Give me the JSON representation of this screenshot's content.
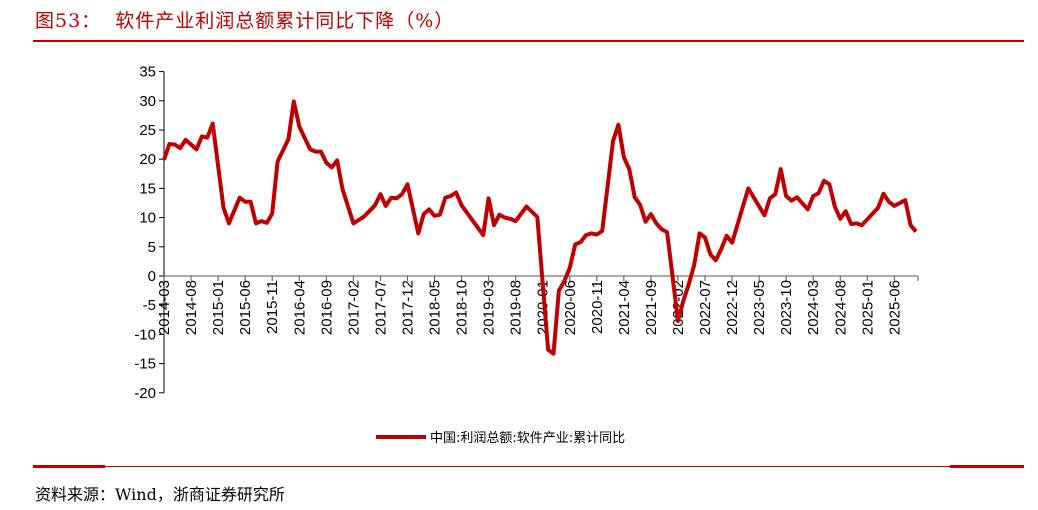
{
  "title": "图53：  软件产业利润总额累计同比下降（%）",
  "source": "资料来源：Wind，浙商证券研究所",
  "chart_data": {
    "type": "line",
    "title": "",
    "xlabel": "",
    "ylabel": "",
    "ylim": [
      -20,
      35
    ],
    "yticks": [
      35,
      30,
      25,
      20,
      15,
      10,
      5,
      0,
      -5,
      -10,
      -15,
      -20
    ],
    "xlim": [
      "2014-03",
      "2025-10"
    ],
    "xtick_labels": [
      "2014-03",
      "2014-08",
      "2015-01",
      "2015-06",
      "2015-11",
      "2016-04",
      "2016-09",
      "2017-02",
      "2017-07",
      "2017-12",
      "2018-05",
      "2018-10",
      "2019-03",
      "2019-08",
      "2020-01",
      "2020-06",
      "2020-11",
      "2021-04",
      "2021-09",
      "2022-02",
      "2022-07",
      "2022-12",
      "2023-05",
      "2023-10",
      "2024-03",
      "2024-08",
      "2025-01",
      "2025-06"
    ],
    "grid": false,
    "legend_position": "bottom",
    "series": [
      {
        "name": "中国:利润总额:软件产业:累计同比",
        "color": "#c00000",
        "points": [
          [
            "2014-03",
            19.9
          ],
          [
            "2014-04",
            22.6
          ],
          [
            "2014-05",
            22.5
          ],
          [
            "2014-06",
            21.9
          ],
          [
            "2014-07",
            23.3
          ],
          [
            "2014-09",
            21.7
          ],
          [
            "2014-10",
            23.9
          ],
          [
            "2014-11",
            23.7
          ],
          [
            "2014-12",
            26.1
          ],
          [
            "2015-02",
            11.7
          ],
          [
            "2015-03",
            9.0
          ],
          [
            "2015-05",
            13.4
          ],
          [
            "2015-06",
            12.7
          ],
          [
            "2015-07",
            12.7
          ],
          [
            "2015-08",
            9.0
          ],
          [
            "2015-09",
            9.4
          ],
          [
            "2015-10",
            9.1
          ],
          [
            "2015-11",
            10.7
          ],
          [
            "2015-12",
            19.6
          ],
          [
            "2016-02",
            23.4
          ],
          [
            "2016-03",
            29.9
          ],
          [
            "2016-04",
            25.6
          ],
          [
            "2016-06",
            21.7
          ],
          [
            "2016-07",
            21.3
          ],
          [
            "2016-08",
            21.3
          ],
          [
            "2016-09",
            19.4
          ],
          [
            "2016-10",
            18.6
          ],
          [
            "2016-11",
            19.8
          ],
          [
            "2016-12",
            14.9
          ],
          [
            "2017-02",
            9.0
          ],
          [
            "2017-04",
            10.2
          ],
          [
            "2017-06",
            12.1
          ],
          [
            "2017-07",
            14.0
          ],
          [
            "2017-08",
            12.0
          ],
          [
            "2017-09",
            13.4
          ],
          [
            "2017-10",
            13.3
          ],
          [
            "2017-11",
            14.0
          ],
          [
            "2017-12",
            15.7
          ],
          [
            "2018-02",
            7.3
          ],
          [
            "2018-03",
            10.6
          ],
          [
            "2018-04",
            11.4
          ],
          [
            "2018-05",
            10.3
          ],
          [
            "2018-06",
            10.5
          ],
          [
            "2018-07",
            13.4
          ],
          [
            "2018-08",
            13.7
          ],
          [
            "2018-09",
            14.3
          ],
          [
            "2018-10",
            12.1
          ],
          [
            "2019-02",
            7.0
          ],
          [
            "2019-03",
            13.3
          ],
          [
            "2019-04",
            8.7
          ],
          [
            "2019-05",
            10.5
          ],
          [
            "2019-06",
            10.0
          ],
          [
            "2019-07",
            9.8
          ],
          [
            "2019-08",
            9.4
          ],
          [
            "2019-10",
            11.9
          ],
          [
            "2019-12",
            10.1
          ],
          [
            "2020-02",
            -12.6
          ],
          [
            "2020-03",
            -13.3
          ],
          [
            "2020-04",
            -2.5
          ],
          [
            "2020-05",
            -0.9
          ],
          [
            "2020-06",
            1.4
          ],
          [
            "2020-07",
            5.4
          ],
          [
            "2020-08",
            5.8
          ],
          [
            "2020-09",
            7.0
          ],
          [
            "2020-10",
            7.3
          ],
          [
            "2020-11",
            7.1
          ],
          [
            "2020-12",
            7.7
          ],
          [
            "2021-02",
            23.1
          ],
          [
            "2021-03",
            25.9
          ],
          [
            "2021-04",
            20.3
          ],
          [
            "2021-05",
            18.3
          ],
          [
            "2021-06",
            13.5
          ],
          [
            "2021-07",
            12.2
          ],
          [
            "2021-08",
            9.3
          ],
          [
            "2021-09",
            10.6
          ],
          [
            "2021-10",
            9.0
          ],
          [
            "2021-11",
            8.0
          ],
          [
            "2021-12",
            7.5
          ],
          [
            "2022-02",
            -7.7
          ],
          [
            "2022-03",
            -4.2
          ],
          [
            "2022-04",
            -1.4
          ],
          [
            "2022-05",
            1.9
          ],
          [
            "2022-06",
            7.3
          ],
          [
            "2022-07",
            6.6
          ],
          [
            "2022-08",
            3.7
          ],
          [
            "2022-09",
            2.7
          ],
          [
            "2022-10",
            4.6
          ],
          [
            "2022-11",
            6.9
          ],
          [
            "2022-12",
            5.7
          ],
          [
            "2023-03",
            15.0
          ],
          [
            "2023-06",
            10.4
          ],
          [
            "2023-07",
            13.3
          ],
          [
            "2023-08",
            14.0
          ],
          [
            "2023-09",
            18.3
          ],
          [
            "2023-10",
            13.7
          ],
          [
            "2023-11",
            12.9
          ],
          [
            "2023-12",
            13.5
          ],
          [
            "2024-02",
            11.4
          ],
          [
            "2024-03",
            13.7
          ],
          [
            "2024-04",
            14.2
          ],
          [
            "2024-05",
            16.3
          ],
          [
            "2024-06",
            15.7
          ],
          [
            "2024-07",
            11.9
          ],
          [
            "2024-08",
            9.8
          ],
          [
            "2024-09",
            11.1
          ],
          [
            "2024-10",
            8.9
          ],
          [
            "2024-11",
            9.0
          ],
          [
            "2024-12",
            8.7
          ],
          [
            "2025-03",
            11.7
          ],
          [
            "2025-04",
            14.1
          ],
          [
            "2025-05",
            12.7
          ],
          [
            "2025-06",
            12.0
          ],
          [
            "2025-08",
            13.0
          ],
          [
            "2025-09",
            8.7
          ],
          [
            "2025-10",
            7.6
          ]
        ]
      }
    ]
  }
}
